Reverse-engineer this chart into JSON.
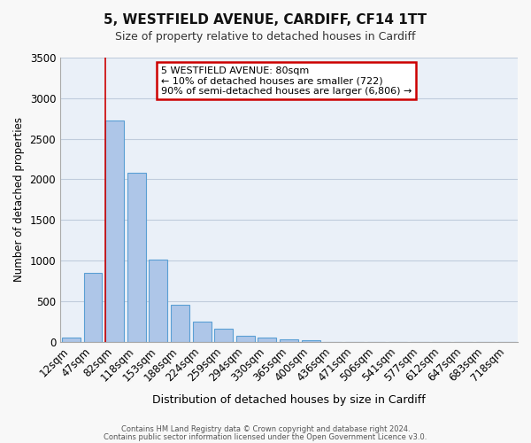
{
  "title": "5, WESTFIELD AVENUE, CARDIFF, CF14 1TT",
  "subtitle": "Size of property relative to detached houses in Cardiff",
  "xlabel": "Distribution of detached houses by size in Cardiff",
  "ylabel": "Number of detached properties",
  "bar_labels": [
    "12sqm",
    "47sqm",
    "82sqm",
    "118sqm",
    "153sqm",
    "188sqm",
    "224sqm",
    "259sqm",
    "294sqm",
    "330sqm",
    "365sqm",
    "400sqm",
    "436sqm",
    "471sqm",
    "506sqm",
    "541sqm",
    "577sqm",
    "612sqm",
    "647sqm",
    "683sqm",
    "718sqm"
  ],
  "bar_values": [
    55,
    850,
    2730,
    2080,
    1010,
    460,
    250,
    155,
    70,
    55,
    30,
    20,
    0,
    0,
    0,
    0,
    0,
    0,
    0,
    0,
    0
  ],
  "bar_color": "#aec6e8",
  "bar_edgecolor": "#5a9fd4",
  "ylim": [
    0,
    3500
  ],
  "yticks": [
    0,
    500,
    1000,
    1500,
    2000,
    2500,
    3000,
    3500
  ],
  "vline_x_index": 2,
  "vline_color": "#cc0000",
  "annotation_line1": "5 WESTFIELD AVENUE: 80sqm",
  "annotation_line2": "← 10% of detached houses are smaller (722)",
  "annotation_line3": "90% of semi-detached houses are larger (6,806) →",
  "annotation_box_edgecolor": "#cc0000",
  "footer1": "Contains HM Land Registry data © Crown copyright and database right 2024.",
  "footer2": "Contains public sector information licensed under the Open Government Licence v3.0.",
  "plot_bg_color": "#eaf0f8",
  "grid_color": "#c0ccdc"
}
